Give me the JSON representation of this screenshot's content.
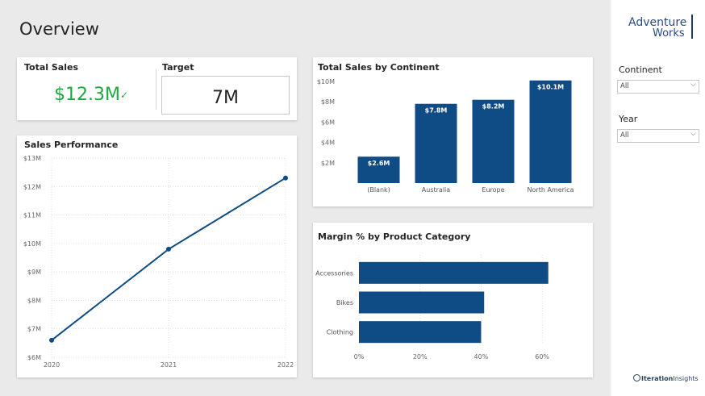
{
  "page": {
    "title": "Overview"
  },
  "kpi": {
    "total_sales_label": "Total Sales",
    "total_sales_value": "$12.3M",
    "status_icon": "check-icon",
    "target_label": "Target",
    "target_value": "7M",
    "value_color": "#1aab40"
  },
  "sales_performance": {
    "title": "Sales Performance",
    "chart_data": {
      "type": "line",
      "x": [
        "2020",
        "2021",
        "2022"
      ],
      "y_ticks": [
        "$6M",
        "$7M",
        "$8M",
        "$9M",
        "$10M",
        "$11M",
        "$12M",
        "$13M"
      ],
      "series": [
        {
          "values": [
            6.6,
            9.8,
            12.3
          ]
        }
      ],
      "ylim": [
        6,
        13
      ],
      "grid": true,
      "color": "#0f4b85"
    }
  },
  "continent_chart": {
    "title": "Total Sales by Continent",
    "chart_data": {
      "type": "bar",
      "categories": [
        "(Blank)",
        "Australia",
        "Europe",
        "North America"
      ],
      "values": [
        2.6,
        7.8,
        8.2,
        10.1
      ],
      "data_labels": [
        "$2.6M",
        "$7.8M",
        "$8.2M",
        "$10.1M"
      ],
      "y_ticks": [
        "$2M",
        "$4M",
        "$6M",
        "$8M",
        "$10M"
      ],
      "ylim": [
        0,
        10
      ],
      "color": "#0f4b85"
    }
  },
  "margin_chart": {
    "title": "Margin % by Product Category",
    "chart_data": {
      "type": "bar",
      "orientation": "horizontal",
      "categories": [
        "Accessories",
        "Bikes",
        "Clothing"
      ],
      "values": [
        62,
        41,
        40
      ],
      "x_ticks": [
        "0%",
        "20%",
        "40%",
        "60%"
      ],
      "xlim": [
        0,
        70
      ],
      "color": "#0f4b85"
    }
  },
  "sidebar": {
    "logo_line1": "Adventure",
    "logo_line2": "Works",
    "continent_label": "Continent",
    "continent_value": "All",
    "year_label": "Year",
    "year_value": "All",
    "brand_name_a": "Iteration",
    "brand_name_b": "Insights"
  }
}
